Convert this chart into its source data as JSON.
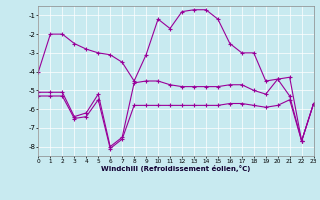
{
  "xlabel": "Windchill (Refroidissement éolien,°C)",
  "bg_color": "#c8eaf0",
  "line_color": "#990099",
  "xlim": [
    0,
    23
  ],
  "ylim": [
    -8.5,
    -0.5
  ],
  "yticks": [
    -8,
    -7,
    -6,
    -5,
    -4,
    -3,
    -2,
    -1
  ],
  "xticks": [
    0,
    1,
    2,
    3,
    4,
    5,
    6,
    7,
    8,
    9,
    10,
    11,
    12,
    13,
    14,
    15,
    16,
    17,
    18,
    19,
    20,
    21,
    22,
    23
  ],
  "line1_y": [
    -4.0,
    -2.0,
    -2.0,
    -2.5,
    -2.8,
    -3.0,
    -3.1,
    -3.5,
    -4.5,
    -3.1,
    -1.2,
    -1.7,
    -0.8,
    -0.7,
    -0.7,
    -1.2,
    -2.5,
    -3.0,
    -3.0,
    -4.5,
    -4.4,
    -4.3,
    -7.7,
    -5.7
  ],
  "line2_y": [
    -5.1,
    -5.1,
    -5.1,
    -6.4,
    -6.2,
    -5.2,
    -8.0,
    -7.5,
    -4.6,
    -4.5,
    -4.5,
    -4.7,
    -4.8,
    -4.8,
    -4.8,
    -4.8,
    -4.7,
    -4.7,
    -5.0,
    -5.2,
    -4.4,
    -5.3,
    -7.7,
    -5.7
  ],
  "line3_y": [
    -5.3,
    -5.3,
    -5.3,
    -6.5,
    -6.4,
    -5.5,
    -8.1,
    -7.6,
    -5.8,
    -5.8,
    -5.8,
    -5.8,
    -5.8,
    -5.8,
    -5.8,
    -5.8,
    -5.7,
    -5.7,
    -5.8,
    -5.9,
    -5.8,
    -5.5,
    -7.7,
    -5.7
  ]
}
